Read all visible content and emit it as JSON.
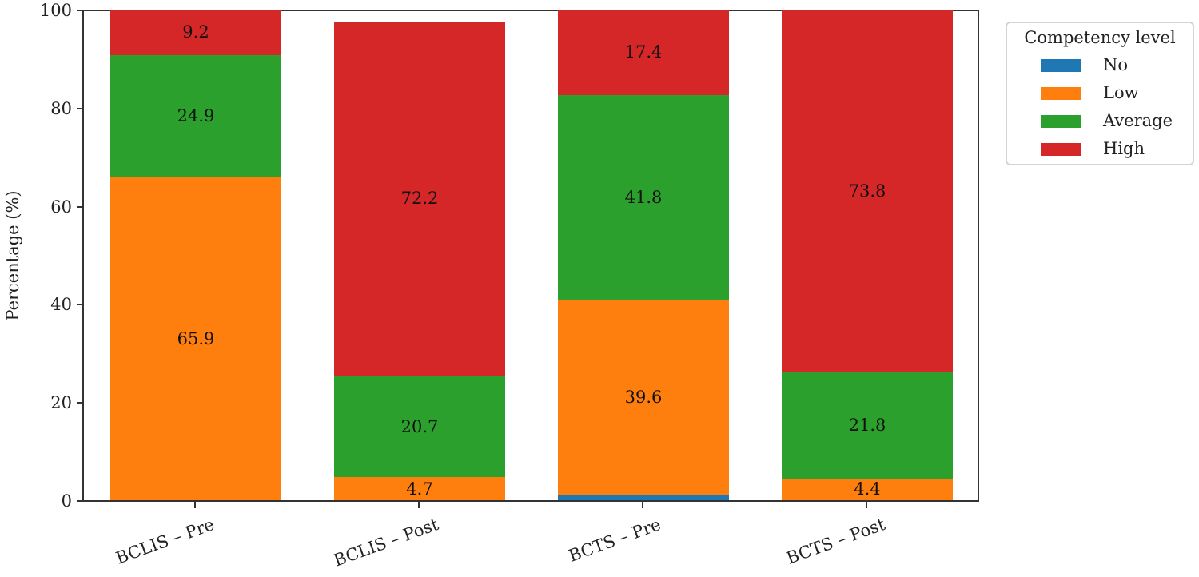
{
  "chart_data": {
    "type": "bar",
    "stacked": true,
    "title": "",
    "xlabel": "",
    "ylabel": "Percentage (%)",
    "ylim": [
      0,
      100
    ],
    "yticks": [
      0,
      20,
      40,
      60,
      80,
      100
    ],
    "grid": false,
    "legend_position": "outside upper right",
    "legend_title": "Competency level",
    "categories": [
      "BCLIS – Pre",
      "BCLIS – Post",
      "BCTS – Pre",
      "BCTS – Post"
    ],
    "series": [
      {
        "name": "No",
        "color": "#1f77b4",
        "values": [
          0,
          0,
          1.2,
          0
        ]
      },
      {
        "name": "Low",
        "color": "#ff7f0e",
        "values": [
          65.9,
          4.7,
          39.6,
          4.4
        ]
      },
      {
        "name": "Average",
        "color": "#2ca02c",
        "values": [
          24.9,
          20.7,
          41.8,
          21.8
        ]
      },
      {
        "name": "High",
        "color": "#d62728",
        "values": [
          9.2,
          72.2,
          17.4,
          73.8
        ]
      }
    ],
    "data_labels": {
      "BCLIS – Pre": {
        "Low": "65.9",
        "Average": "24.9",
        "High": "9.2"
      },
      "BCLIS – Post": {
        "Low": "4.7",
        "Average": "20.7",
        "High": "72.2"
      },
      "BCTS – Pre": {
        "Low": "39.6",
        "Average": "41.8",
        "High": "17.4"
      },
      "BCTS – Post": {
        "Low": "4.4",
        "Average": "21.8",
        "High": "73.8"
      }
    }
  },
  "axis": {
    "ylabel": "Percentage (%)",
    "yticks": [
      "0",
      "20",
      "40",
      "60",
      "80",
      "100"
    ],
    "xticks": [
      "BCLIS – Pre",
      "BCLIS – Post",
      "BCTS – Pre",
      "BCTS – Post"
    ]
  },
  "legend": {
    "title": "Competency level",
    "items": [
      {
        "label": "No",
        "color": "#1f77b4"
      },
      {
        "label": "Low",
        "color": "#ff7f0e"
      },
      {
        "label": "Average",
        "color": "#2ca02c"
      },
      {
        "label": "High",
        "color": "#d62728"
      }
    ]
  }
}
